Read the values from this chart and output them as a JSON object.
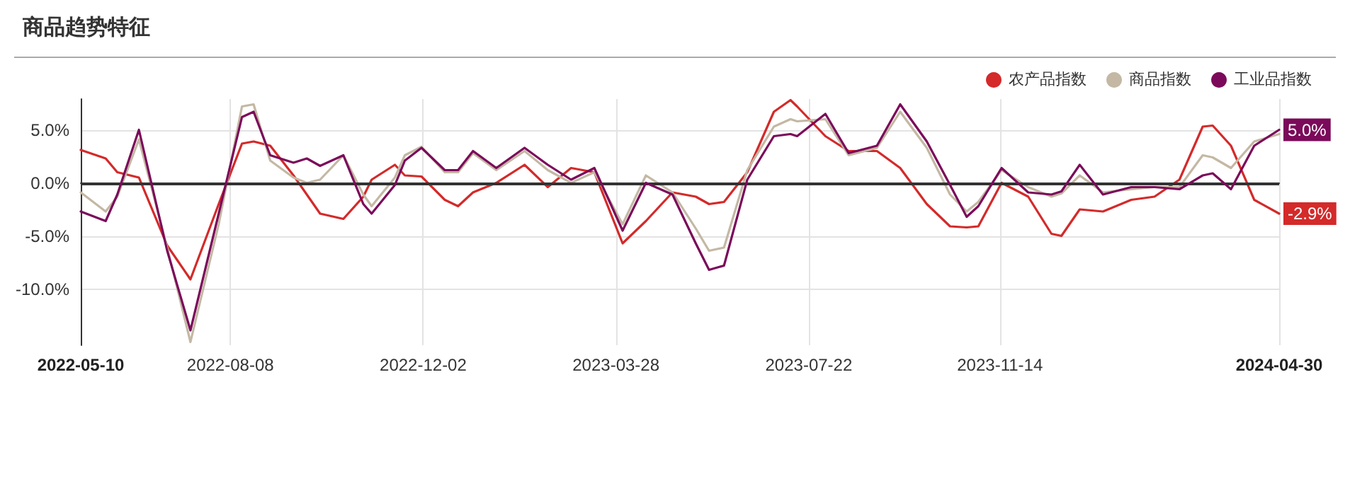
{
  "chart_data": {
    "type": "line",
    "title": "商品趋势特征",
    "x": [
      "2022-05-10",
      "2022-05-25",
      "2022-06-01",
      "2022-06-14",
      "2022-07-01",
      "2022-07-15",
      "2022-08-01",
      "2022-08-15",
      "2022-08-22",
      "2022-09-01",
      "2022-09-15",
      "2022-09-23",
      "2022-10-01",
      "2022-10-15",
      "2022-10-27",
      "2022-11-01",
      "2022-11-15",
      "2022-11-21",
      "2022-12-01",
      "2022-12-15",
      "2022-12-23",
      "2023-01-01",
      "2023-01-15",
      "2023-02-01",
      "2023-02-15",
      "2023-03-01",
      "2023-03-15",
      "2023-04-01",
      "2023-04-15",
      "2023-05-01",
      "2023-05-15",
      "2023-05-23",
      "2023-06-01",
      "2023-06-15",
      "2023-07-01",
      "2023-07-11",
      "2023-07-15",
      "2023-08-01",
      "2023-08-15",
      "2023-09-01",
      "2023-09-15",
      "2023-10-01",
      "2023-10-15",
      "2023-10-25",
      "2023-11-01",
      "2023-11-15",
      "2023-12-01",
      "2023-12-15",
      "2023-12-21",
      "2024-01-01",
      "2024-01-15",
      "2024-02-01",
      "2024-02-15",
      "2024-03-01",
      "2024-03-15",
      "2024-03-21",
      "2024-04-01",
      "2024-04-15",
      "2024-04-30"
    ],
    "series": [
      {
        "name": "农产品指数",
        "color": "#d42a2a",
        "values": [
          3.1,
          2.3,
          1.0,
          0.5,
          -5.9,
          -9.1,
          -2.0,
          3.7,
          3.9,
          3.5,
          0.7,
          -1.1,
          -2.9,
          -3.4,
          -1.3,
          0.3,
          1.7,
          0.7,
          0.6,
          -1.6,
          -2.2,
          -0.9,
          0.0,
          1.7,
          -0.4,
          1.4,
          1.0,
          -5.7,
          -3.6,
          -0.9,
          -1.3,
          -2.0,
          -1.8,
          1.0,
          6.7,
          7.8,
          7.2,
          4.4,
          3.0,
          3.0,
          1.4,
          -2.0,
          -4.1,
          -4.2,
          -4.1,
          0.0,
          -1.3,
          -4.8,
          -5.0,
          -2.5,
          -2.7,
          -1.6,
          -1.3,
          0.3,
          5.3,
          5.4,
          3.5,
          -1.6,
          -2.9
        ]
      },
      {
        "name": "商品指数",
        "color": "#c4b8a4",
        "values": [
          -0.9,
          -2.7,
          -1.3,
          4.1,
          -6.1,
          -15.0,
          -3.9,
          7.2,
          7.4,
          2.1,
          0.5,
          0.0,
          0.3,
          2.6,
          -1.1,
          -2.2,
          0.5,
          2.6,
          3.4,
          1.0,
          1.0,
          2.8,
          1.2,
          3.0,
          1.2,
          0.0,
          1.0,
          -3.9,
          0.7,
          -0.9,
          -4.3,
          -6.4,
          -6.1,
          1.2,
          5.3,
          6.0,
          5.8,
          6.0,
          2.6,
          3.3,
          6.7,
          3.3,
          -1.1,
          -2.7,
          -1.8,
          1.2,
          -0.4,
          -1.3,
          -1.0,
          0.7,
          -0.9,
          -0.6,
          -0.4,
          -0.4,
          2.6,
          2.4,
          1.4,
          3.9,
          4.6
        ]
      },
      {
        "name": "工业品指数",
        "color": "#7b0a5a",
        "values": [
          -2.7,
          -3.6,
          -1.1,
          5.0,
          -6.4,
          -13.9,
          -2.9,
          6.2,
          6.7,
          2.6,
          1.9,
          2.3,
          1.6,
          2.6,
          -2.0,
          -2.9,
          -0.2,
          2.1,
          3.3,
          1.2,
          1.2,
          3.0,
          1.4,
          3.3,
          1.7,
          0.3,
          1.4,
          -4.5,
          0.0,
          -1.1,
          -5.7,
          -8.2,
          -7.8,
          0.3,
          4.4,
          4.6,
          4.4,
          6.5,
          2.8,
          3.5,
          7.4,
          3.9,
          -0.2,
          -3.2,
          -2.2,
          1.4,
          -0.9,
          -1.1,
          -0.8,
          1.7,
          -1.1,
          -0.4,
          -0.4,
          -0.6,
          0.7,
          0.9,
          -0.6,
          3.5,
          5.0
        ]
      }
    ],
    "xlim": [
      "2022-05-10",
      "2024-04-30"
    ],
    "xticks": [
      {
        "value": "2022-05-10",
        "label": "2022-05-10"
      },
      {
        "value": "2022-08-08",
        "label": "2022-08-08"
      },
      {
        "value": "2022-12-02",
        "label": "2022-12-02"
      },
      {
        "value": "2023-03-28",
        "label": "2023-03-28"
      },
      {
        "value": "2023-07-22",
        "label": "2023-07-22"
      },
      {
        "value": "2023-11-14",
        "label": "2023-11-14"
      },
      {
        "value": "2024-04-30",
        "label": "2024-04-30"
      }
    ],
    "ylim": [
      -15.3,
      7.9
    ],
    "yticks": [
      {
        "value": -10,
        "label": "-10.0%"
      },
      {
        "value": -5,
        "label": "-5.0%"
      },
      {
        "value": 0,
        "label": "0.0%"
      },
      {
        "value": 5,
        "label": "5.0%"
      }
    ],
    "ref_lines": [
      {
        "axis": "y",
        "value": 0,
        "color": "#333333"
      }
    ],
    "annotations": [
      {
        "text": "5.0%",
        "x": "2024-04-30",
        "y": 5.0
      },
      {
        "text": "-2.9%",
        "x": "2024-04-30",
        "y": -2.9
      }
    ],
    "grid": true,
    "legend": "top right",
    "marker": "none",
    "line_style": "solid"
  }
}
